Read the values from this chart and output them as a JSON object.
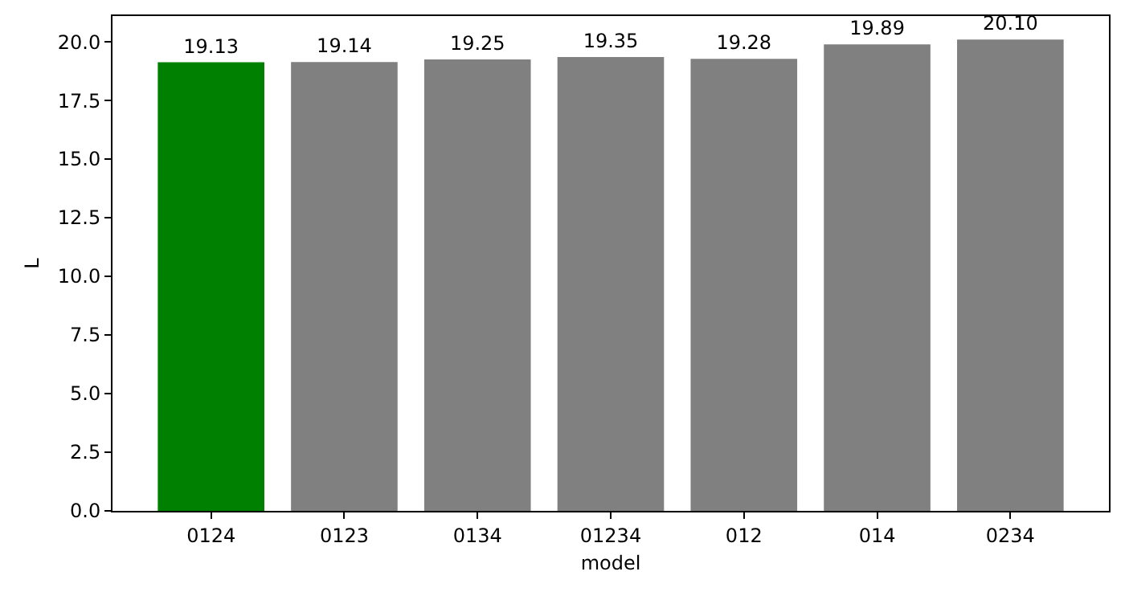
{
  "chart_data": {
    "type": "bar",
    "xlabel": "model",
    "ylabel": "L",
    "categories": [
      "0124",
      "0123",
      "0134",
      "01234",
      "012",
      "014",
      "0234"
    ],
    "values": [
      19.13,
      19.14,
      19.25,
      19.35,
      19.28,
      19.89,
      20.1
    ],
    "value_labels": [
      "19.13",
      "19.14",
      "19.25",
      "19.35",
      "19.28",
      "19.89",
      "20.10"
    ],
    "colors": [
      "#008000",
      "#808080",
      "#808080",
      "#808080",
      "#808080",
      "#808080",
      "#808080"
    ],
    "ylim": [
      0,
      21.1
    ],
    "yticks": [
      {
        "value": 0,
        "label": "0.0"
      },
      {
        "value": 2.5,
        "label": "2.5"
      },
      {
        "value": 5,
        "label": "5.0"
      },
      {
        "value": 7.5,
        "label": "7.5"
      },
      {
        "value": 10,
        "label": "10.0"
      },
      {
        "value": 12.5,
        "label": "12.5"
      },
      {
        "value": 15,
        "label": "15.0"
      },
      {
        "value": 17.5,
        "label": "17.5"
      },
      {
        "value": 20,
        "label": "20.0"
      }
    ],
    "grid": false,
    "legend": false
  }
}
